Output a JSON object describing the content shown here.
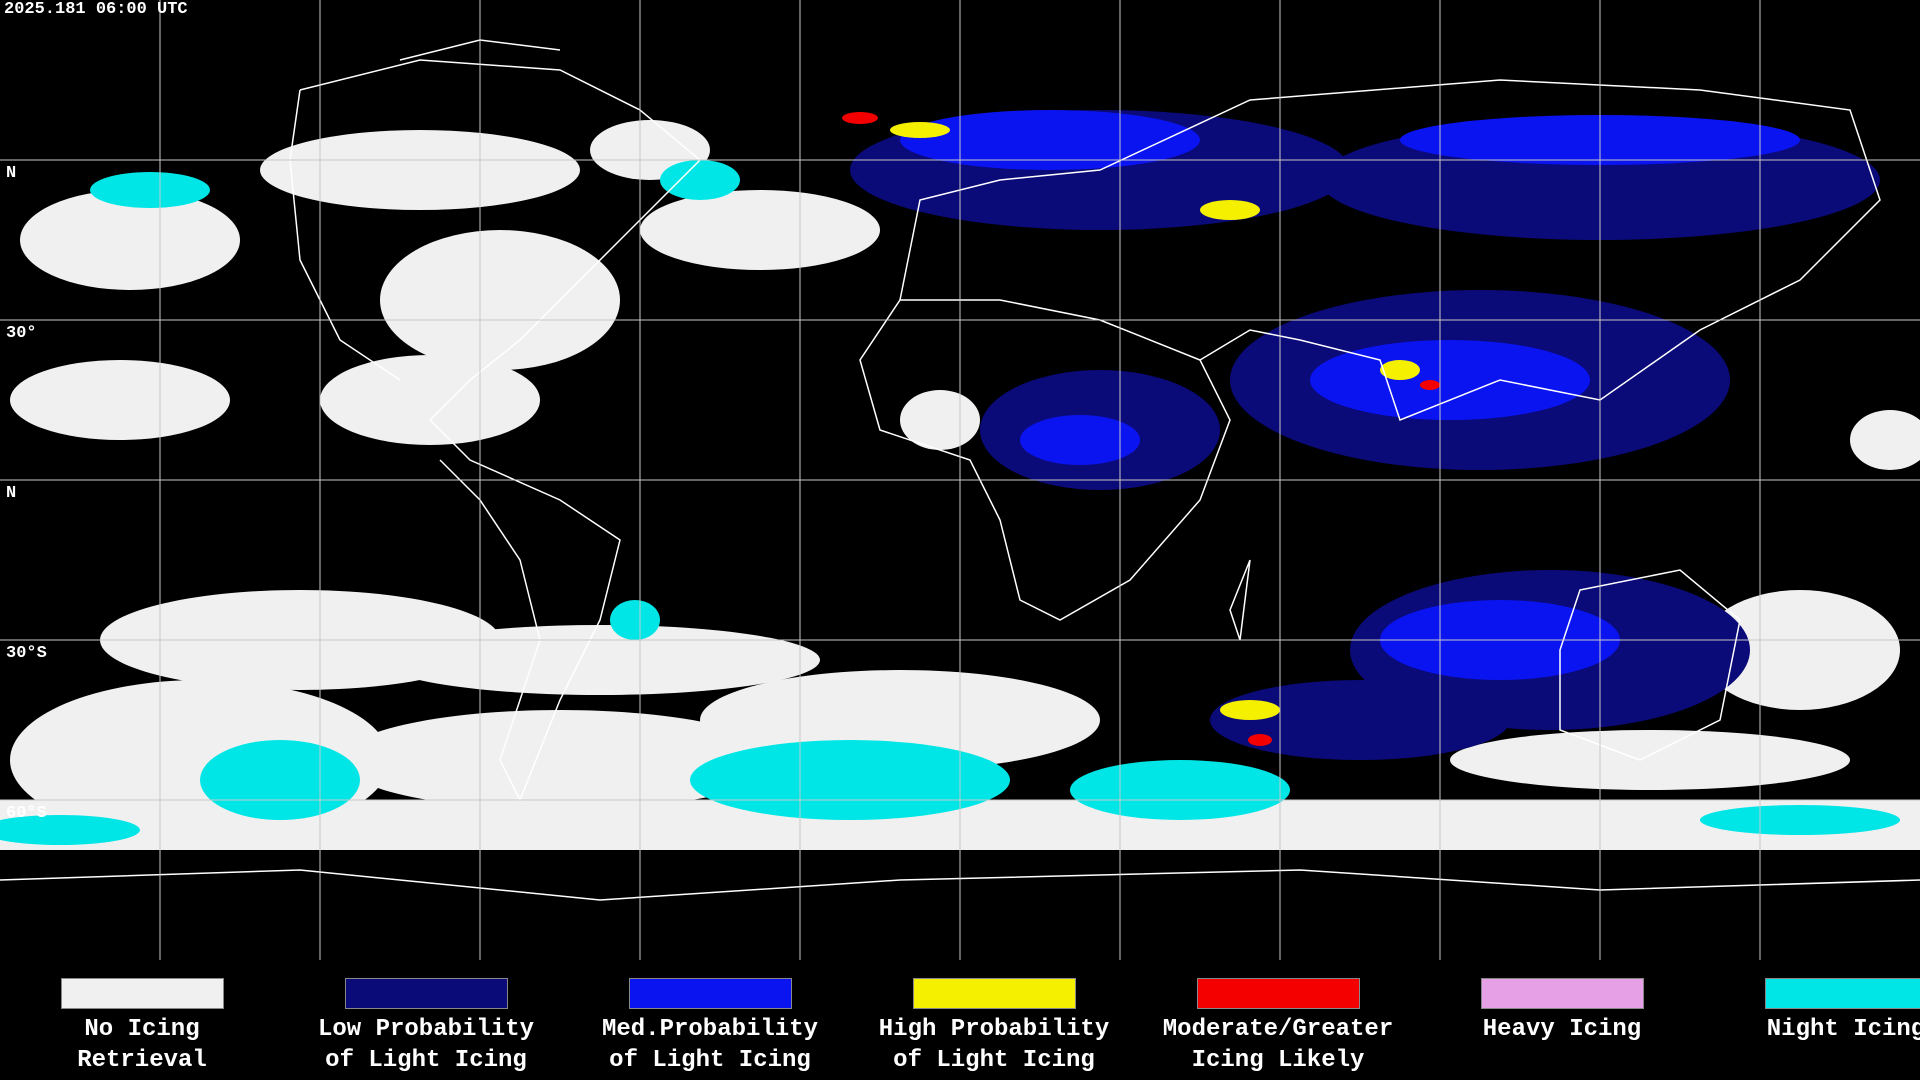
{
  "header": {
    "timestamp": "2025.181 06:00 UTC"
  },
  "map": {
    "latitude_labels": [
      "N",
      "30°",
      "N",
      "30°S",
      "60°S"
    ]
  },
  "legend": {
    "items": [
      {
        "line1": "No Icing",
        "line2": "Retrieval",
        "color": "#f0f0f0"
      },
      {
        "line1": "Low Probability",
        "line2": "of Light Icing",
        "color": "#0a0a78"
      },
      {
        "line1": "Med.Probability",
        "line2": "of Light Icing",
        "color": "#0a14f0"
      },
      {
        "line1": "High Probability",
        "line2": "of Light Icing",
        "color": "#f5f000"
      },
      {
        "line1": "Moderate/Greater",
        "line2": "Icing Likely",
        "color": "#f50000"
      },
      {
        "line1": "Heavy Icing",
        "line2": "",
        "color": "#e6a0e6"
      },
      {
        "line1": "Night Icing",
        "line2": "",
        "color": "#00e6e6"
      }
    ]
  }
}
